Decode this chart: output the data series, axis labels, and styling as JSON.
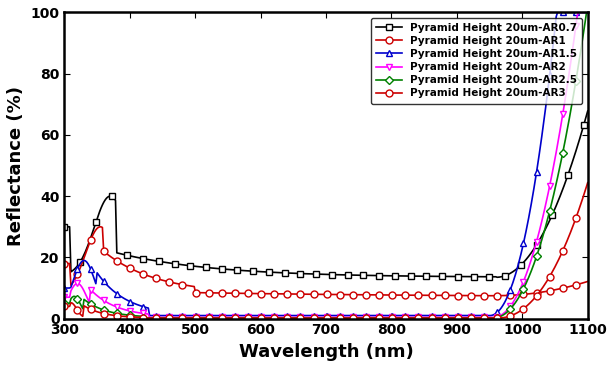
{
  "title": "",
  "xlabel": "Wavelength (nm)",
  "ylabel": "Reflectance (%)",
  "xlim": [
    300,
    1100
  ],
  "ylim": [
    0,
    100
  ],
  "xticks": [
    300,
    400,
    500,
    600,
    700,
    800,
    900,
    1000,
    1100
  ],
  "yticks": [
    0,
    20,
    40,
    60,
    80,
    100
  ],
  "series": [
    {
      "label": "Pyramid Height 20um-AR0.7",
      "color": "#000000",
      "marker": "s",
      "markerfacecolor": "white",
      "markeredgecolor": "#000000"
    },
    {
      "label": "Pyramid Height 20um-AR1",
      "color": "#cc0000",
      "marker": "o",
      "markerfacecolor": "white",
      "markeredgecolor": "#cc0000"
    },
    {
      "label": "Pyramid Height 20um-AR1.5",
      "color": "#0000cc",
      "marker": "^",
      "markerfacecolor": "white",
      "markeredgecolor": "#0000cc"
    },
    {
      "label": "Pyramid Height 20um-AR2",
      "color": "#ff00ff",
      "marker": "v",
      "markerfacecolor": "white",
      "markeredgecolor": "#ff00ff"
    },
    {
      "label": "Pyramid Height 20um-AR2.5",
      "color": "#008000",
      "marker": "D",
      "markerfacecolor": "white",
      "markeredgecolor": "#008000"
    },
    {
      "label": "Pyramid Height 20um-AR3",
      "color": "#cc0000",
      "marker": "o",
      "markerfacecolor": "white",
      "markeredgecolor": "#cc0000"
    }
  ],
  "background_color": "#ffffff",
  "legend_fontsize": 7.5,
  "axis_label_fontsize": 13,
  "tick_fontsize": 10
}
